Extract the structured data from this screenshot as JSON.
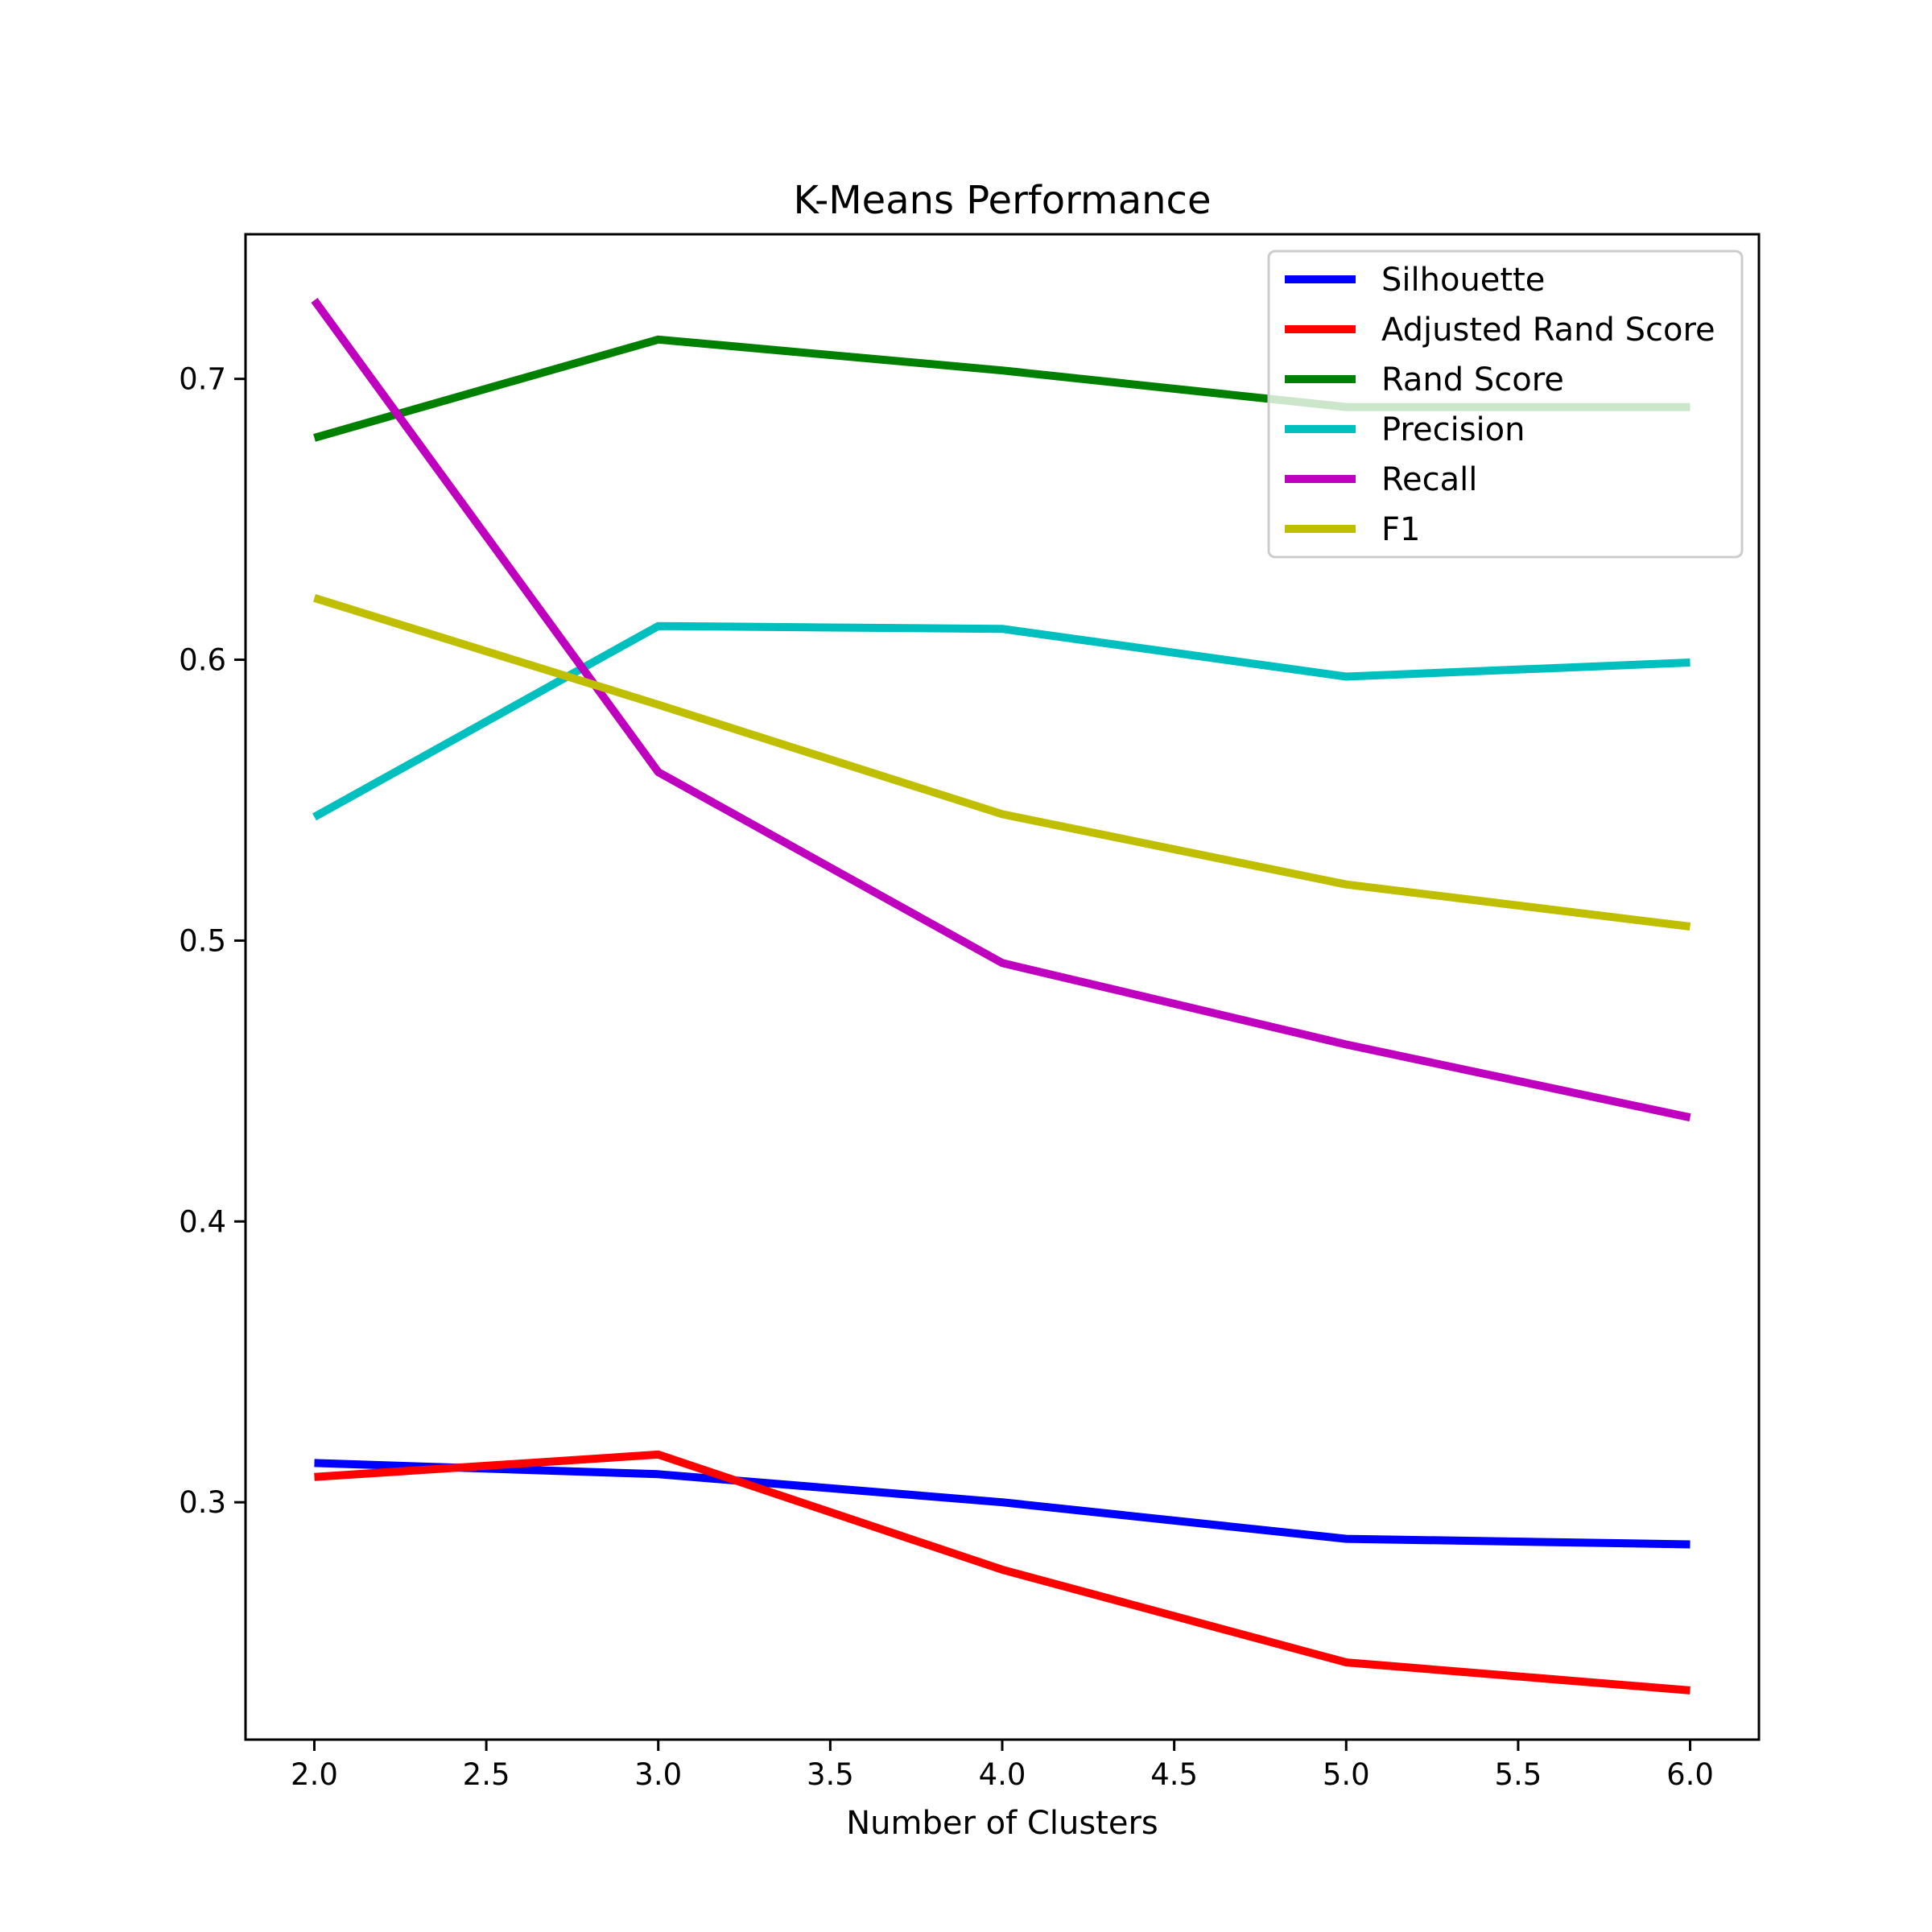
{
  "chart_data": {
    "type": "line",
    "title": "K-Means Performance",
    "xlabel": "Number of Clusters",
    "ylabel": "",
    "x": [
      2.0,
      3.0,
      4.0,
      5.0,
      6.0
    ],
    "xlim": [
      1.8,
      6.2
    ],
    "ylim": [
      0.2155,
      0.7515
    ],
    "xticks": [
      2.0,
      2.5,
      3.0,
      3.5,
      4.0,
      4.5,
      5.0,
      5.5,
      6.0
    ],
    "xtick_labels": [
      "2.0",
      "2.5",
      "3.0",
      "3.5",
      "4.0",
      "4.5",
      "5.0",
      "5.5",
      "6.0"
    ],
    "yticks": [
      0.3,
      0.4,
      0.5,
      0.6,
      0.7
    ],
    "ytick_labels": [
      "0.3",
      "0.4",
      "0.5",
      "0.6",
      "0.7"
    ],
    "grid": false,
    "legend_position": "upper right",
    "series": [
      {
        "name": "Silhouette",
        "color": "#0000ff",
        "values": [
          0.314,
          0.31,
          0.3,
          0.287,
          0.285
        ]
      },
      {
        "name": "Adjusted Rand Score",
        "color": "#ff0000",
        "values": [
          0.309,
          0.317,
          0.276,
          0.243,
          0.233
        ]
      },
      {
        "name": "Rand Score",
        "color": "#008000",
        "values": [
          0.679,
          0.714,
          0.703,
          0.69,
          0.69
        ]
      },
      {
        "name": "Precision",
        "color": "#00bfbf",
        "values": [
          0.544,
          0.612,
          0.611,
          0.594,
          0.599
        ]
      },
      {
        "name": "Recall",
        "color": "#bf00bf",
        "values": [
          0.728,
          0.56,
          0.492,
          0.463,
          0.437
        ]
      },
      {
        "name": "F1",
        "color": "#bfbf00",
        "values": [
          0.622,
          0.584,
          0.545,
          0.52,
          0.505
        ]
      }
    ]
  }
}
